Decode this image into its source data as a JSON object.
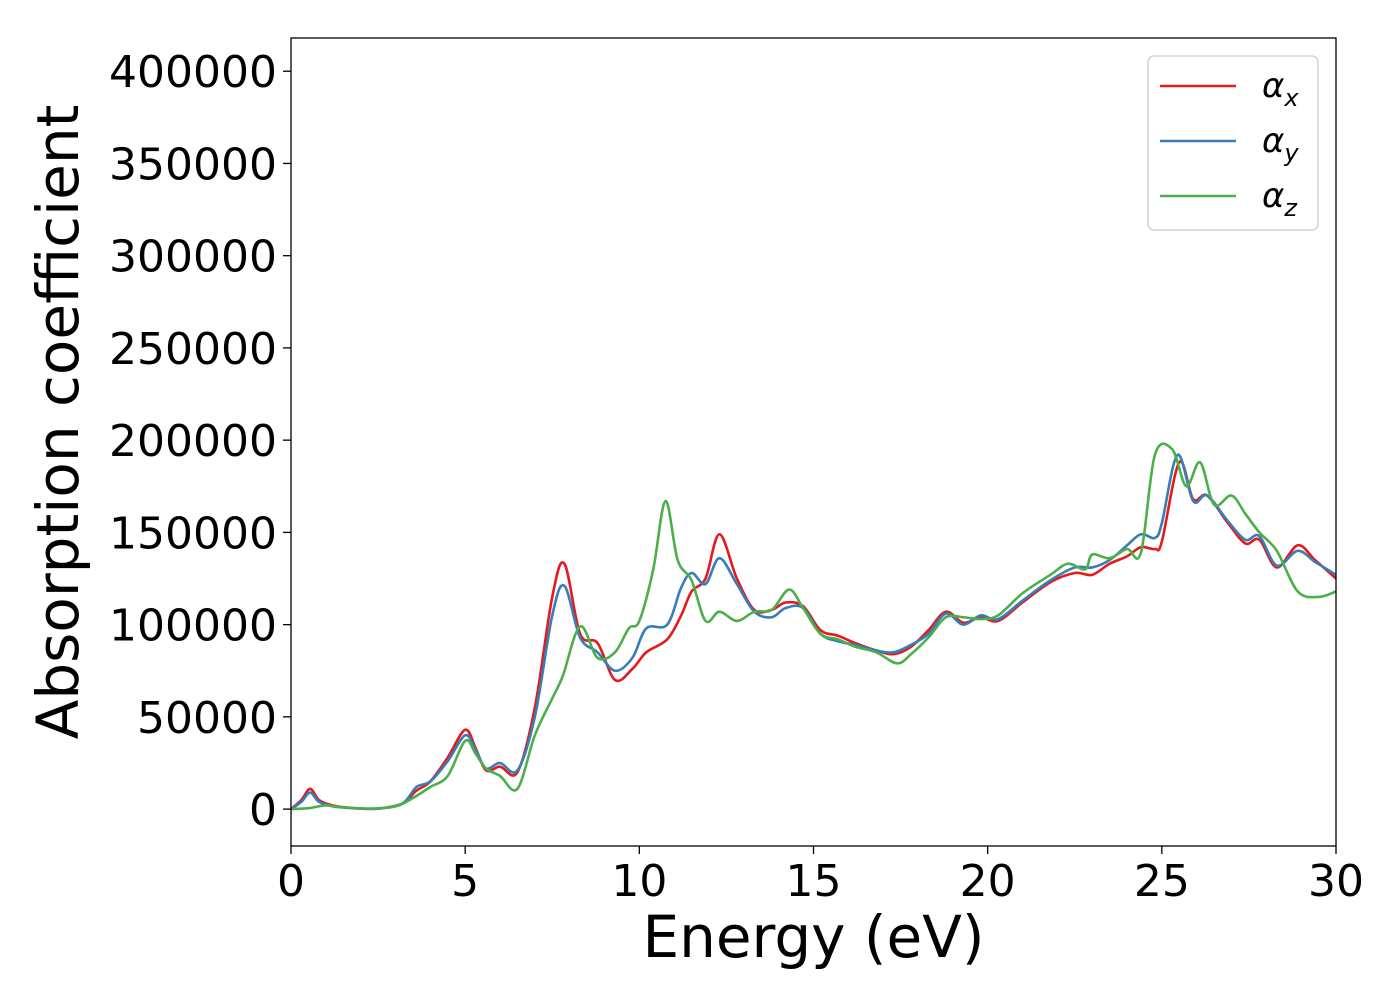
{
  "chart_data": {
    "type": "line",
    "title": "",
    "xlabel": "Energy (eV)",
    "ylabel": "Absorption coefficient",
    "xlim": [
      0,
      30
    ],
    "ylim": [
      -20000,
      418000
    ],
    "xticks": [
      0,
      5,
      10,
      15,
      20,
      25,
      30
    ],
    "yticks": [
      0,
      50000,
      100000,
      150000,
      200000,
      250000,
      300000,
      350000,
      400000
    ],
    "grid": false,
    "legend_position": "top-right",
    "series": [
      {
        "name": "α",
        "subscript": "x",
        "color": "#e41a1c",
        "points": [
          [
            0,
            0
          ],
          [
            0.3,
            5000
          ],
          [
            0.55,
            11000
          ],
          [
            0.8,
            5000
          ],
          [
            1.2,
            2000
          ],
          [
            1.8,
            500
          ],
          [
            2.5,
            300
          ],
          [
            3.2,
            3000
          ],
          [
            3.6,
            10000
          ],
          [
            4.0,
            15000
          ],
          [
            4.5,
            28000
          ],
          [
            5.0,
            43000
          ],
          [
            5.3,
            33000
          ],
          [
            5.6,
            21000
          ],
          [
            6.0,
            23000
          ],
          [
            6.5,
            20000
          ],
          [
            7.0,
            55000
          ],
          [
            7.5,
            115000
          ],
          [
            7.85,
            133000
          ],
          [
            8.3,
            95000
          ],
          [
            8.8,
            90000
          ],
          [
            9.3,
            70000
          ],
          [
            9.8,
            76000
          ],
          [
            10.2,
            85000
          ],
          [
            10.8,
            92000
          ],
          [
            11.2,
            105000
          ],
          [
            11.5,
            118000
          ],
          [
            11.9,
            125000
          ],
          [
            12.3,
            149000
          ],
          [
            12.8,
            125000
          ],
          [
            13.3,
            108000
          ],
          [
            13.8,
            108000
          ],
          [
            14.2,
            112000
          ],
          [
            14.7,
            110000
          ],
          [
            15.2,
            97000
          ],
          [
            15.7,
            94000
          ],
          [
            16.2,
            90000
          ],
          [
            16.8,
            86000
          ],
          [
            17.3,
            84000
          ],
          [
            17.8,
            88000
          ],
          [
            18.3,
            97000
          ],
          [
            18.8,
            107000
          ],
          [
            19.3,
            101000
          ],
          [
            19.8,
            104000
          ],
          [
            20.3,
            102000
          ],
          [
            21.0,
            112000
          ],
          [
            21.8,
            123000
          ],
          [
            22.5,
            128000
          ],
          [
            23.0,
            127000
          ],
          [
            23.5,
            133000
          ],
          [
            24.0,
            137000
          ],
          [
            24.4,
            142000
          ],
          [
            24.8,
            141000
          ],
          [
            25.0,
            145000
          ],
          [
            25.5,
            188000
          ],
          [
            25.9,
            168000
          ],
          [
            26.3,
            170000
          ],
          [
            26.9,
            155000
          ],
          [
            27.4,
            144000
          ],
          [
            27.8,
            146000
          ],
          [
            28.3,
            131000
          ],
          [
            28.9,
            143000
          ],
          [
            29.4,
            135000
          ],
          [
            30,
            125000
          ]
        ]
      },
      {
        "name": "α",
        "subscript": "y",
        "color": "#377eb8",
        "points": [
          [
            0,
            0
          ],
          [
            0.3,
            4000
          ],
          [
            0.55,
            9000
          ],
          [
            0.8,
            4000
          ],
          [
            1.2,
            1500
          ],
          [
            1.8,
            500
          ],
          [
            2.5,
            300
          ],
          [
            3.2,
            3000
          ],
          [
            3.6,
            12000
          ],
          [
            4.0,
            15000
          ],
          [
            4.5,
            26000
          ],
          [
            5.0,
            40000
          ],
          [
            5.3,
            32000
          ],
          [
            5.6,
            22000
          ],
          [
            6.0,
            25000
          ],
          [
            6.5,
            21000
          ],
          [
            7.0,
            50000
          ],
          [
            7.5,
            105000
          ],
          [
            7.85,
            121000
          ],
          [
            8.3,
            93000
          ],
          [
            8.8,
            85000
          ],
          [
            9.3,
            75000
          ],
          [
            9.8,
            82000
          ],
          [
            10.2,
            98000
          ],
          [
            10.8,
            100000
          ],
          [
            11.2,
            120000
          ],
          [
            11.5,
            128000
          ],
          [
            11.9,
            122000
          ],
          [
            12.3,
            136000
          ],
          [
            12.8,
            122000
          ],
          [
            13.3,
            107000
          ],
          [
            13.8,
            104000
          ],
          [
            14.2,
            109000
          ],
          [
            14.7,
            109000
          ],
          [
            15.2,
            95000
          ],
          [
            15.7,
            91000
          ],
          [
            16.2,
            89000
          ],
          [
            16.8,
            86000
          ],
          [
            17.3,
            85000
          ],
          [
            17.8,
            89000
          ],
          [
            18.3,
            95000
          ],
          [
            18.8,
            106000
          ],
          [
            19.3,
            100000
          ],
          [
            19.8,
            105000
          ],
          [
            20.3,
            103000
          ],
          [
            21.0,
            113000
          ],
          [
            21.8,
            124000
          ],
          [
            22.5,
            131000
          ],
          [
            23.0,
            131000
          ],
          [
            23.5,
            135000
          ],
          [
            24.0,
            143000
          ],
          [
            24.4,
            149000
          ],
          [
            24.8,
            147000
          ],
          [
            25.0,
            155000
          ],
          [
            25.45,
            192000
          ],
          [
            25.9,
            167000
          ],
          [
            26.3,
            170000
          ],
          [
            26.9,
            156000
          ],
          [
            27.4,
            146000
          ],
          [
            27.8,
            148000
          ],
          [
            28.3,
            132000
          ],
          [
            28.9,
            140000
          ],
          [
            29.4,
            134000
          ],
          [
            30,
            127000
          ]
        ]
      },
      {
        "name": "α",
        "subscript": "z",
        "color": "#4daf4a",
        "points": [
          [
            0,
            0
          ],
          [
            0.5,
            500
          ],
          [
            1.0,
            2000
          ],
          [
            1.5,
            1000
          ],
          [
            2.2,
            300
          ],
          [
            3.0,
            1500
          ],
          [
            3.5,
            6000
          ],
          [
            4.0,
            12000
          ],
          [
            4.5,
            18000
          ],
          [
            5.0,
            37000
          ],
          [
            5.3,
            30000
          ],
          [
            5.6,
            22000
          ],
          [
            6.0,
            18000
          ],
          [
            6.5,
            11000
          ],
          [
            7.0,
            40000
          ],
          [
            7.5,
            60000
          ],
          [
            7.8,
            72000
          ],
          [
            8.3,
            99000
          ],
          [
            8.8,
            82000
          ],
          [
            9.3,
            85000
          ],
          [
            9.7,
            98000
          ],
          [
            10.0,
            102000
          ],
          [
            10.4,
            130000
          ],
          [
            10.75,
            167000
          ],
          [
            11.1,
            135000
          ],
          [
            11.5,
            124000
          ],
          [
            11.9,
            102000
          ],
          [
            12.3,
            107000
          ],
          [
            12.8,
            102000
          ],
          [
            13.3,
            107000
          ],
          [
            13.8,
            108000
          ],
          [
            14.3,
            119000
          ],
          [
            14.7,
            109000
          ],
          [
            15.2,
            95000
          ],
          [
            15.7,
            92000
          ],
          [
            16.2,
            88000
          ],
          [
            16.8,
            85000
          ],
          [
            17.4,
            79000
          ],
          [
            17.8,
            84000
          ],
          [
            18.3,
            93000
          ],
          [
            18.8,
            104000
          ],
          [
            19.3,
            104000
          ],
          [
            19.8,
            103000
          ],
          [
            20.3,
            105000
          ],
          [
            21.0,
            117000
          ],
          [
            21.8,
            127000
          ],
          [
            22.3,
            133000
          ],
          [
            22.8,
            130000
          ],
          [
            23.0,
            138000
          ],
          [
            23.5,
            136000
          ],
          [
            24.0,
            141000
          ],
          [
            24.4,
            139000
          ],
          [
            24.8,
            192000
          ],
          [
            25.3,
            195000
          ],
          [
            25.7,
            175000
          ],
          [
            26.1,
            188000
          ],
          [
            26.5,
            165000
          ],
          [
            27.0,
            170000
          ],
          [
            27.4,
            160000
          ],
          [
            27.8,
            150000
          ],
          [
            28.3,
            140000
          ],
          [
            28.9,
            118000
          ],
          [
            29.5,
            115000
          ],
          [
            30,
            118000
          ]
        ]
      }
    ]
  }
}
